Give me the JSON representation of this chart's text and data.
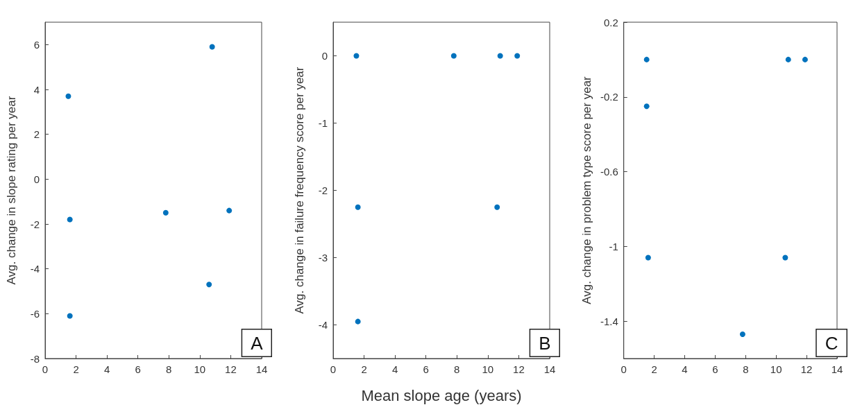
{
  "chart_data": [
    {
      "type": "scatter",
      "ylabel": "Avg. change in slope rating per year",
      "annotations": [
        "A"
      ],
      "marker": "circle",
      "xlim": [
        0,
        14
      ],
      "xticks": [
        0,
        2,
        4,
        6,
        8,
        10,
        12,
        14
      ],
      "ylim": [
        -8,
        7
      ],
      "yticks": [
        -8,
        -6,
        -4,
        -2,
        0,
        2,
        4,
        6
      ],
      "series": [
        {
          "color": "#0072bd",
          "x": [
            1.5,
            1.6,
            1.6,
            7.8,
            10.6,
            10.8,
            11.9
          ],
          "values": [
            3.7,
            -1.8,
            -6.1,
            -1.5,
            -4.7,
            5.9,
            -1.4
          ]
        }
      ]
    },
    {
      "type": "scatter",
      "ylabel": "Avg. change in failure frequency score per year",
      "xlabel": "Mean slope age (years)",
      "annotations": [
        "B"
      ],
      "marker": "circle",
      "xlim": [
        0,
        14
      ],
      "xticks": [
        0,
        2,
        4,
        6,
        8,
        10,
        12,
        14
      ],
      "ylim": [
        -4.5,
        0.5
      ],
      "yticks": [
        -4,
        -3,
        -2,
        -1,
        0
      ],
      "series": [
        {
          "color": "#0072bd",
          "x": [
            1.5,
            7.8,
            10.8,
            11.9,
            1.6,
            10.6,
            1.6
          ],
          "values": [
            0,
            0,
            0,
            0,
            -2.25,
            -2.25,
            -3.95
          ]
        }
      ]
    },
    {
      "type": "scatter",
      "ylabel": "Avg. change in problem type score per year",
      "annotations": [
        "C"
      ],
      "marker": "circle",
      "xlim": [
        0,
        14
      ],
      "xticks": [
        0,
        2,
        4,
        6,
        8,
        10,
        12,
        14
      ],
      "ylim": [
        -1.6,
        0.2
      ],
      "yticks": [
        -1.4,
        -1,
        -0.6,
        -0.2,
        0.2
      ],
      "series": [
        {
          "color": "#0072bd",
          "x": [
            1.5,
            10.8,
            11.9,
            1.5,
            1.6,
            10.6,
            7.8
          ],
          "values": [
            0,
            0,
            0,
            -0.25,
            -1.06,
            -1.06,
            -1.47
          ]
        }
      ]
    }
  ]
}
